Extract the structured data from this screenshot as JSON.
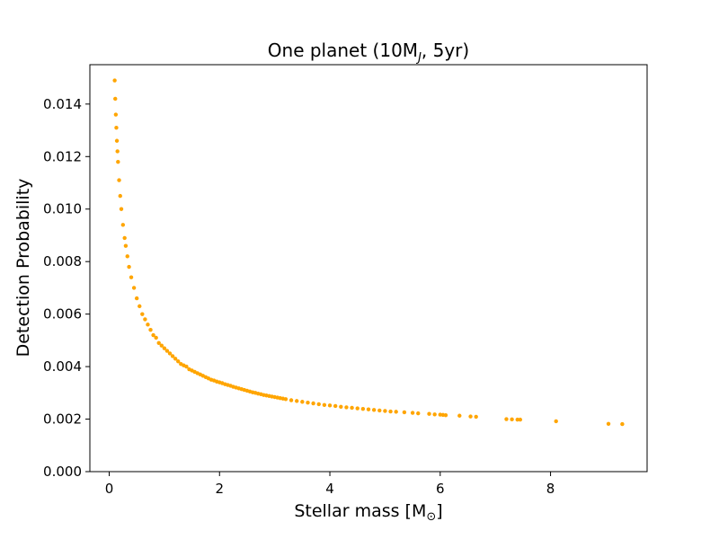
{
  "chart_data": {
    "type": "scatter",
    "title": {
      "prefix": "One planet (10M",
      "subscript": "J",
      "suffix": ", 5yr)"
    },
    "xlabel": {
      "prefix": "Stellar mass [M",
      "subscript": "⊙",
      "suffix": "]"
    },
    "ylabel": "Detection Probability",
    "xlim": [
      -0.35,
      9.75
    ],
    "ylim": [
      0.0,
      0.0155
    ],
    "xticks": [
      0,
      2,
      4,
      6,
      8
    ],
    "xtick_labels": [
      "0",
      "2",
      "4",
      "6",
      "8"
    ],
    "yticks": [
      0.0,
      0.002,
      0.004,
      0.006,
      0.008,
      0.01,
      0.012,
      0.014
    ],
    "ytick_labels": [
      "0.000",
      "0.002",
      "0.004",
      "0.006",
      "0.008",
      "0.010",
      "0.012",
      "0.014"
    ],
    "grid": false,
    "marker_color": "#FFA500",
    "series": [
      {
        "x": [
          0.1,
          0.11,
          0.12,
          0.13,
          0.14,
          0.15,
          0.16,
          0.18,
          0.2,
          0.22,
          0.25,
          0.28,
          0.3,
          0.33,
          0.36,
          0.4,
          0.45,
          0.5,
          0.55,
          0.6,
          0.65,
          0.7,
          0.75,
          0.8,
          0.85,
          0.9,
          0.95,
          1.0,
          1.05,
          1.1,
          1.15,
          1.2,
          1.25,
          1.3,
          1.35,
          1.4,
          1.45,
          1.5,
          1.55,
          1.6,
          1.65,
          1.7,
          1.75,
          1.8,
          1.85,
          1.9,
          1.95,
          2.0,
          2.05,
          2.1,
          2.15,
          2.2,
          2.25,
          2.3,
          2.35,
          2.4,
          2.45,
          2.5,
          2.55,
          2.6,
          2.65,
          2.7,
          2.75,
          2.8,
          2.85,
          2.9,
          2.95,
          3.0,
          3.05,
          3.1,
          3.15,
          3.2,
          3.3,
          3.4,
          3.5,
          3.6,
          3.7,
          3.8,
          3.9,
          4.0,
          4.1,
          4.2,
          4.3,
          4.4,
          4.5,
          4.6,
          4.7,
          4.8,
          4.9,
          5.0,
          5.1,
          5.2,
          5.35,
          5.5,
          5.6,
          5.8,
          5.9,
          6.0,
          6.05,
          6.1,
          6.35,
          6.55,
          6.65,
          7.2,
          7.3,
          7.4,
          7.45,
          8.1,
          9.05,
          9.3
        ],
        "y": [
          0.0149,
          0.0142,
          0.0136,
          0.0131,
          0.0126,
          0.0122,
          0.0118,
          0.0111,
          0.0105,
          0.01,
          0.0094,
          0.0089,
          0.0086,
          0.0082,
          0.0078,
          0.0074,
          0.007,
          0.0066,
          0.0063,
          0.006,
          0.0058,
          0.0056,
          0.0054,
          0.0052,
          0.0051,
          0.0049,
          0.0048,
          0.0047,
          0.0046,
          0.0045,
          0.0044,
          0.0043,
          0.0042,
          0.0041,
          0.00405,
          0.004,
          0.0039,
          0.00385,
          0.0038,
          0.00375,
          0.0037,
          0.00365,
          0.0036,
          0.00355,
          0.0035,
          0.00347,
          0.00343,
          0.0034,
          0.00337,
          0.00333,
          0.0033,
          0.00327,
          0.00323,
          0.0032,
          0.00317,
          0.00314,
          0.00311,
          0.00308,
          0.00305,
          0.00302,
          0.003,
          0.00297,
          0.00295,
          0.00292,
          0.0029,
          0.00288,
          0.00286,
          0.00284,
          0.00282,
          0.0028,
          0.00278,
          0.00276,
          0.00272,
          0.00269,
          0.00266,
          0.00263,
          0.0026,
          0.00257,
          0.00254,
          0.00252,
          0.0025,
          0.00247,
          0.00245,
          0.00243,
          0.00241,
          0.00239,
          0.00237,
          0.00235,
          0.00233,
          0.00231,
          0.00229,
          0.00228,
          0.00226,
          0.00224,
          0.00222,
          0.0022,
          0.00218,
          0.00217,
          0.00216,
          0.00215,
          0.00213,
          0.0021,
          0.00209,
          0.002,
          0.00199,
          0.00198,
          0.00198,
          0.00192,
          0.00182,
          0.00181
        ]
      }
    ]
  }
}
